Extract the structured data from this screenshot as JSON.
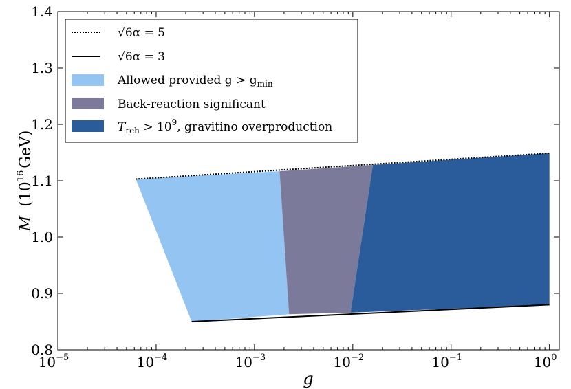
{
  "chart_data": {
    "type": "area",
    "title": "",
    "xlabel": "g",
    "ylabel_main": "M",
    "ylabel_unit_prefix": "(10",
    "ylabel_unit_exp": "16",
    "ylabel_unit_suffix": "GeV)",
    "xscale": "log",
    "xlim_exp": [
      -5,
      0.1
    ],
    "ylim": [
      0.8,
      1.4
    ],
    "x_ticks": [
      {
        "base": "10",
        "exp": "−5",
        "exponent": -5
      },
      {
        "base": "10",
        "exp": "−4",
        "exponent": -4
      },
      {
        "base": "10",
        "exp": "−3",
        "exponent": -3
      },
      {
        "base": "10",
        "exp": "−2",
        "exponent": -2
      },
      {
        "base": "10",
        "exp": "−1",
        "exponent": -1
      },
      {
        "base": "10",
        "exp": "0",
        "exponent": 0
      }
    ],
    "y_ticks": [
      {
        "label": "0.8",
        "value": 0.8
      },
      {
        "label": "0.9",
        "value": 0.9
      },
      {
        "label": "1.0",
        "value": 1.0
      },
      {
        "label": "1.1",
        "value": 1.1
      },
      {
        "label": "1.2",
        "value": 1.2
      },
      {
        "label": "1.3",
        "value": 1.3
      },
      {
        "label": "1.4",
        "value": 1.4
      }
    ],
    "lines": [
      {
        "name": "sqrt6alpha_5",
        "style": "dotted",
        "points": [
          [
            6.2e-05,
            1.103
          ],
          [
            1.0,
            1.149
          ]
        ]
      },
      {
        "name": "sqrt6alpha_3",
        "style": "solid",
        "points": [
          [
            0.00023,
            0.85
          ],
          [
            1.0,
            0.88
          ]
        ]
      }
    ],
    "regions": [
      {
        "name": "allowed",
        "color": "#93c4f2",
        "polygon": [
          [
            6.2e-05,
            1.103
          ],
          [
            0.0018,
            1.117
          ],
          [
            0.00225,
            0.863
          ],
          [
            0.00023,
            0.85
          ]
        ]
      },
      {
        "name": "backreaction",
        "color": "#7b7a9b",
        "polygon": [
          [
            0.0018,
            1.117
          ],
          [
            0.016,
            1.128
          ],
          [
            0.0095,
            0.866
          ],
          [
            0.00225,
            0.863
          ]
        ]
      },
      {
        "name": "gravitino",
        "color": "#2a5c9c",
        "polygon": [
          [
            0.016,
            1.128
          ],
          [
            1.0,
            1.149
          ],
          [
            1.0,
            0.88
          ],
          [
            0.0095,
            0.866
          ]
        ]
      }
    ],
    "legend": {
      "placement": "top-left",
      "entries": [
        {
          "kind": "line",
          "style": "dotted",
          "label": "√6α = 5"
        },
        {
          "kind": "line",
          "style": "solid",
          "label": "√6α = 3"
        },
        {
          "kind": "patch",
          "color": "#93c4f2",
          "label_pre": "Allowed provided g > g",
          "label_sub": "min"
        },
        {
          "kind": "patch",
          "color": "#7b7a9b",
          "label": "Back-reaction significant"
        },
        {
          "kind": "patch",
          "color": "#2a5c9c",
          "label_T": "T",
          "label_sub": "reh",
          "label_mid": " > 10",
          "label_sup": "9",
          "label_post": ", gravitino overproduction"
        }
      ]
    }
  }
}
